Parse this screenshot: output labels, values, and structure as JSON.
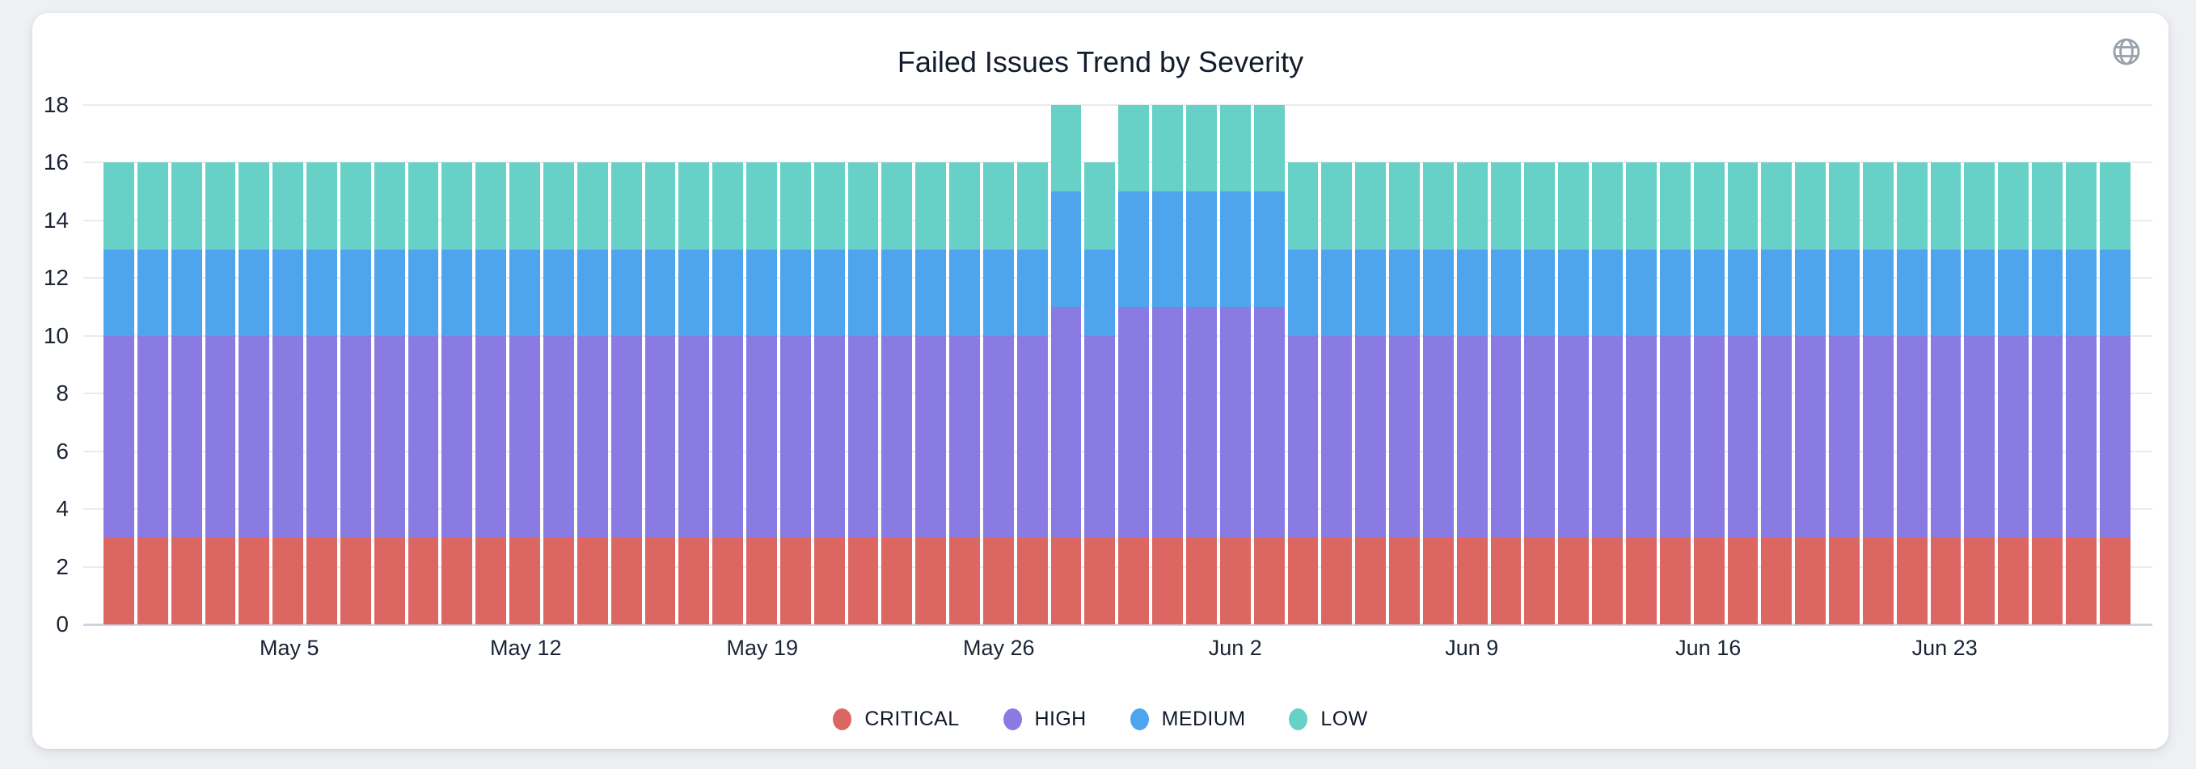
{
  "page": {
    "background": "#eef0f3"
  },
  "card": {
    "title": "Failed Issues Trend by Severity"
  },
  "icons": {
    "globe": {
      "name": "globe-icon",
      "color": "#99a1ab"
    }
  },
  "colors": {
    "grid": "#ebebeb",
    "axis_line": "#ccd6e2",
    "axis_text": "#1b2435",
    "title_text": "#131b2e"
  },
  "chart_data": {
    "type": "bar",
    "stacked": true,
    "title": "Failed Issues Trend by Severity",
    "xlabel": "",
    "ylabel": "",
    "ylim": [
      0,
      18
    ],
    "y_ticks": [
      0,
      2,
      4,
      6,
      8,
      10,
      12,
      14,
      16,
      18
    ],
    "grid": true,
    "legend_position": "bottom",
    "categories": [
      "Apr 30",
      "May 1",
      "May 2",
      "May 3",
      "May 4",
      "May 5",
      "May 6",
      "May 7",
      "May 8",
      "May 9",
      "May 10",
      "May 11",
      "May 12",
      "May 13",
      "May 14",
      "May 15",
      "May 16",
      "May 17",
      "May 18",
      "May 19",
      "May 20",
      "May 21",
      "May 22",
      "May 23",
      "May 24",
      "May 25",
      "May 26",
      "May 27",
      "May 28",
      "May 29",
      "May 30",
      "May 31",
      "Jun 1",
      "Jun 2",
      "Jun 3",
      "Jun 4",
      "Jun 5",
      "Jun 6",
      "Jun 7",
      "Jun 8",
      "Jun 9",
      "Jun 10",
      "Jun 11",
      "Jun 12",
      "Jun 13",
      "Jun 14",
      "Jun 15",
      "Jun 16",
      "Jun 17",
      "Jun 18",
      "Jun 19",
      "Jun 20",
      "Jun 21",
      "Jun 22",
      "Jun 23",
      "Jun 24",
      "Jun 25",
      "Jun 26",
      "Jun 27",
      "Jun 28"
    ],
    "x_ticks": [
      {
        "label": "May 5",
        "index": 5
      },
      {
        "label": "May 12",
        "index": 12
      },
      {
        "label": "May 19",
        "index": 19
      },
      {
        "label": "May 26",
        "index": 26
      },
      {
        "label": "Jun 2",
        "index": 33
      },
      {
        "label": "Jun 9",
        "index": 40
      },
      {
        "label": "Jun 16",
        "index": 47
      },
      {
        "label": "Jun 23",
        "index": 54
      }
    ],
    "series": [
      {
        "name": "CRITICAL",
        "color": "#DC6762",
        "values": [
          3,
          3,
          3,
          3,
          3,
          3,
          3,
          3,
          3,
          3,
          3,
          3,
          3,
          3,
          3,
          3,
          3,
          3,
          3,
          3,
          3,
          3,
          3,
          3,
          3,
          3,
          3,
          3,
          3,
          3,
          3,
          3,
          3,
          3,
          3,
          3,
          3,
          3,
          3,
          3,
          3,
          3,
          3,
          3,
          3,
          3,
          3,
          3,
          3,
          3,
          3,
          3,
          3,
          3,
          3,
          3,
          3,
          3,
          3,
          3
        ]
      },
      {
        "name": "HIGH",
        "color": "#8A7BE2",
        "values": [
          7,
          7,
          7,
          7,
          7,
          7,
          7,
          7,
          7,
          7,
          7,
          7,
          7,
          7,
          7,
          7,
          7,
          7,
          7,
          7,
          7,
          7,
          7,
          7,
          7,
          7,
          7,
          7,
          8,
          7,
          8,
          8,
          8,
          8,
          8,
          7,
          7,
          7,
          7,
          7,
          7,
          7,
          7,
          7,
          7,
          7,
          7,
          7,
          7,
          7,
          7,
          7,
          7,
          7,
          7,
          7,
          7,
          7,
          7,
          7
        ]
      },
      {
        "name": "MEDIUM",
        "color": "#4EA4ED",
        "values": [
          3,
          3,
          3,
          3,
          3,
          3,
          3,
          3,
          3,
          3,
          3,
          3,
          3,
          3,
          3,
          3,
          3,
          3,
          3,
          3,
          3,
          3,
          3,
          3,
          3,
          3,
          3,
          3,
          4,
          3,
          4,
          4,
          4,
          4,
          4,
          3,
          3,
          3,
          3,
          3,
          3,
          3,
          3,
          3,
          3,
          3,
          3,
          3,
          3,
          3,
          3,
          3,
          3,
          3,
          3,
          3,
          3,
          3,
          3,
          3
        ]
      },
      {
        "name": "LOW",
        "color": "#67D1C7",
        "values": [
          3,
          3,
          3,
          3,
          3,
          3,
          3,
          3,
          3,
          3,
          3,
          3,
          3,
          3,
          3,
          3,
          3,
          3,
          3,
          3,
          3,
          3,
          3,
          3,
          3,
          3,
          3,
          3,
          3,
          3,
          3,
          3,
          3,
          3,
          3,
          3,
          3,
          3,
          3,
          3,
          3,
          3,
          3,
          3,
          3,
          3,
          3,
          3,
          3,
          3,
          3,
          3,
          3,
          3,
          3,
          3,
          3,
          3,
          3,
          3
        ]
      }
    ]
  }
}
